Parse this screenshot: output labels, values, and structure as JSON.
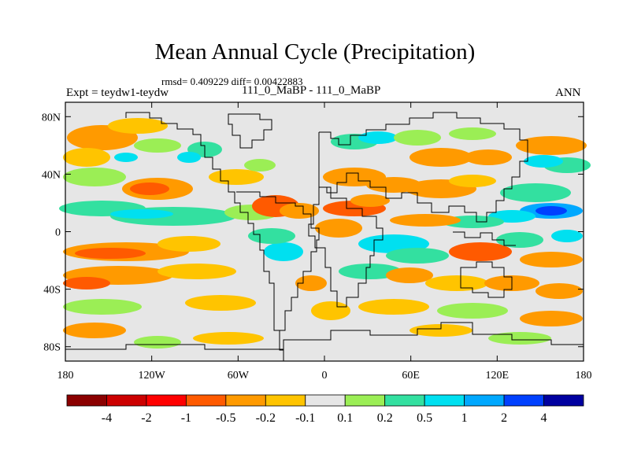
{
  "chart_data": {
    "type": "heatmap",
    "title": "Mean Annual Cycle (Precipitation)",
    "stats_text": "rmsd= 0.409229 diff= 0.00422883",
    "left_label": "Expt = teydw1-teydw",
    "center_label": "111_0_MaBP - 111_0_MaBP",
    "right_label": "ANN",
    "x_ticks": [
      "180",
      "120W",
      "60W",
      "0",
      "60E",
      "120E",
      "180"
    ],
    "x_tick_values": [
      -180,
      -120,
      -60,
      0,
      60,
      120,
      180
    ],
    "y_ticks": [
      "80N",
      "40N",
      "0",
      "40S",
      "80S"
    ],
    "y_tick_values": [
      80,
      40,
      0,
      -40,
      -80
    ],
    "xlim": [
      -180,
      180
    ],
    "ylim": [
      -90,
      90
    ],
    "colorbar_labels": [
      "-4",
      "-2",
      "-1",
      "-0.5",
      "-0.2",
      "-0.1",
      "0.1",
      "0.2",
      "0.5",
      "1",
      "2",
      "4"
    ],
    "colorbar_colors": [
      "#8b0000",
      "#cc0000",
      "#ff0000",
      "#ff5a00",
      "#ff9a00",
      "#ffc400",
      "#e6e6e6",
      "#9bee55",
      "#33e0a0",
      "#00e0f0",
      "#00a8ff",
      "#0040ff",
      "#0000a0"
    ],
    "shade_colors": {
      "dry_strong": "#ff5a00",
      "dry": "#ff9a00",
      "dry_weak": "#ffc400",
      "neutral": "#e6e6e6",
      "wet_weak": "#9bee55",
      "wet": "#33e0a0",
      "wet_strong": "#00e0f0",
      "wet_very": "#00a8ff",
      "wet_extreme": "#0040ff"
    }
  }
}
